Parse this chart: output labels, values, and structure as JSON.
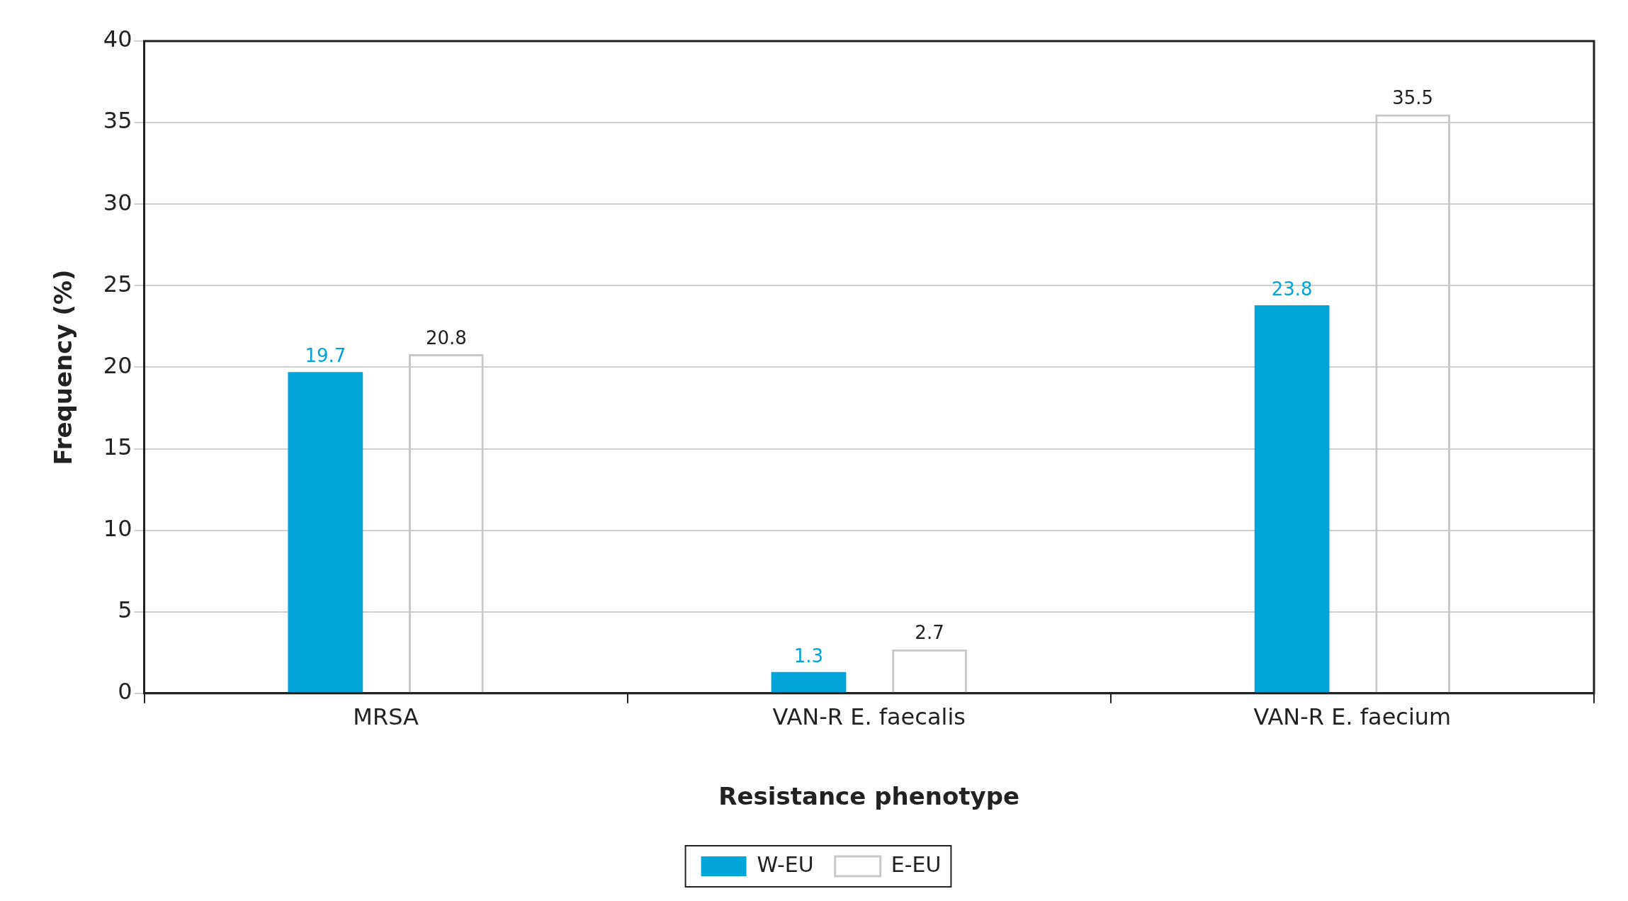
{
  "chart_data": {
    "type": "bar",
    "xlabel": "Resistance phenotype",
    "ylabel": "Frequency (%)",
    "categories": [
      "MRSA",
      "VAN-R E. faecalis",
      "VAN-R E. faecium"
    ],
    "series": [
      {
        "name": "W-EU",
        "color": "#00a6d9",
        "values": [
          19.7,
          1.3,
          23.8
        ]
      },
      {
        "name": "E-EU",
        "color": "#c8c8c8",
        "values": [
          20.8,
          2.7,
          35.5
        ]
      }
    ],
    "ylim": [
      0,
      40
    ],
    "yticks": [
      0,
      5,
      10,
      15,
      20,
      25,
      30,
      35,
      40
    ],
    "grid": "y",
    "legend": "bottom",
    "data_labels": true
  }
}
